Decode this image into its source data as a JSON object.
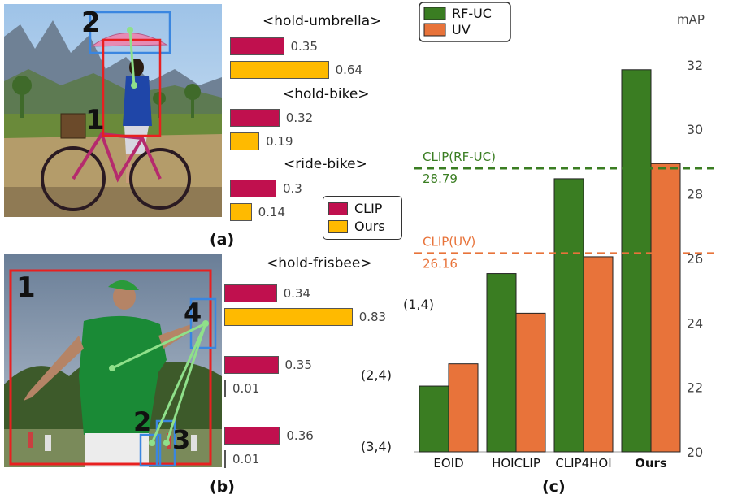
{
  "panel_a": {
    "label": "(a)",
    "boxes": [
      {
        "id": "1"
      },
      {
        "id": "2"
      }
    ],
    "interactions": [
      {
        "name": "<hold-umbrella>",
        "clip": 0.35,
        "ours": 0.64,
        "clip_label": "0.35",
        "ours_label": "0.64"
      },
      {
        "name": "<hold-bike>",
        "clip": 0.32,
        "ours": 0.19,
        "clip_label": "0.32",
        "ours_label": "0.19"
      },
      {
        "name": "<ride-bike>",
        "clip": 0.3,
        "ours": 0.14,
        "clip_label": "0.3",
        "ours_label": "0.14"
      }
    ]
  },
  "legend_ab": {
    "items": [
      {
        "label": "CLIP",
        "color": "#c0104e"
      },
      {
        "label": "Ours",
        "color": "#ffba00"
      }
    ]
  },
  "panel_b": {
    "label": "(b)",
    "boxes": [
      {
        "id": "1"
      },
      {
        "id": "2"
      },
      {
        "id": "3"
      },
      {
        "id": "4"
      }
    ],
    "title": "<hold-frisbee>",
    "pairs": [
      {
        "pair": "(1,4)",
        "clip": 0.34,
        "ours": 0.83,
        "clip_label": "0.34",
        "ours_label": "0.83"
      },
      {
        "pair": "(2,4)",
        "clip": 0.35,
        "ours": 0.01,
        "clip_label": "0.35",
        "ours_label": "0.01"
      },
      {
        "pair": "(3,4)",
        "clip": 0.36,
        "ours": 0.01,
        "clip_label": "0.36",
        "ours_label": "0.01"
      }
    ]
  },
  "chart_data": {
    "type": "bar",
    "label": "(c)",
    "categories": [
      "EOID",
      "HOICLIP",
      "CLIP4HOI",
      "Ours"
    ],
    "series": [
      {
        "name": "RF-UC",
        "color": "#3a7d22",
        "values": [
          22.04,
          25.53,
          28.47,
          31.85
        ]
      },
      {
        "name": "UV",
        "color": "#e8733a",
        "values": [
          22.73,
          24.3,
          26.05,
          28.94
        ]
      }
    ],
    "ylabel": "mAP",
    "ylim": [
      20,
      32.5
    ],
    "yticks": [
      20,
      22,
      24,
      26,
      28,
      30,
      32
    ],
    "ytick_labels": [
      "20",
      "22",
      "24",
      "26",
      "28",
      "30",
      "32"
    ],
    "reference_lines": [
      {
        "name": "CLIP(RF-UC)",
        "value": 28.79,
        "value_label": "28.79",
        "color": "#3a7d22"
      },
      {
        "name": "CLIP(UV)",
        "value": 26.16,
        "value_label": "26.16",
        "color": "#e8733a"
      }
    ],
    "legend_position": "top-left",
    "grid": false
  }
}
